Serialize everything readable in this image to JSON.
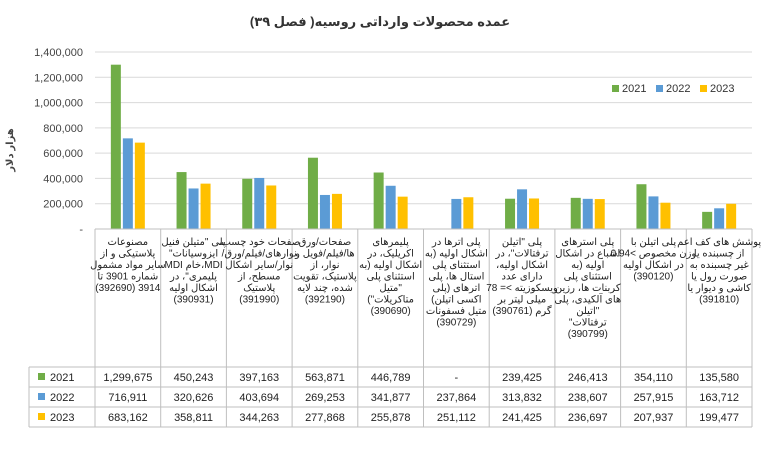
{
  "chart_data": {
    "type": "bar",
    "title": "عمده محصولات وارداتی روسیه( فصل ۳۹)",
    "ylabel": "هزار دلار",
    "ylim": [
      0,
      1400000
    ],
    "y_ticks": [
      "-",
      "200,000",
      "400,000",
      "600,000",
      "800,000",
      "1,000,000",
      "1,200,000",
      "1,400,000"
    ],
    "y_tick_values": [
      0,
      200000,
      400000,
      600000,
      800000,
      1000000,
      1200000,
      1400000
    ],
    "legend_position": "top-right",
    "grid": true,
    "categories": [
      "مصنوعات پلاستیکی و از سایر مواد مشمول شماره 3901 تا 3914 (392690)",
      "پلی \"متیلن فنیل ایزوسیانات\" MDI،خام MDI پلیمری\"، در اشکال اولیه (390931)",
      "صفحات خود چسب، نوارهای/فیلم/ورق/ نوار/سایر اشکال مسطح، از پلاستیک (391990)",
      "صفحات/ورق ها/فیلم/فویل و نوار، از پلاستیک، تقویت شده، چند لایه (392190)",
      "پلیمرهای اکریلیک، در اشکال اولیه (به استثنای پلی \"متیل متاکریلات\") (390690)",
      "پلی اترها در اشکال اولیه (به استثنای پلی استال ها، پلی اترهای (پلی اکسی اتیلن) متیل فسفونات (390729)",
      "پلی \"اتیلن ترفتالات\"، در اشکال اولیه، دارای عدد ویسکوزیته >= 78 میلی لیتر بر گرم (390761)",
      "پلی استرهای اشباع در اشکال اولیه (به استثنای پلی کربنات ها، رزین های آلکیدی، پلی \"اتیلن ترفتالات\" (390799)",
      "پلی اتیلن با وزن مخصوص >0.94 در اشکال اولیه (390120)",
      "پوشش های کف اعم از چسبنده یا غیر چسبنده به صورت رول یا کاشی و دیوار یا (391810)"
    ],
    "series": [
      {
        "name": "2021",
        "values": [
          1299675,
          450243,
          397163,
          563871,
          446789,
          null,
          239425,
          246413,
          354110,
          135580
        ],
        "labels": [
          "1,299,675",
          "450,243",
          "397,163",
          "563,871",
          "446,789",
          "-",
          "239,425",
          "246,413",
          "354,110",
          "135,580"
        ]
      },
      {
        "name": "2022",
        "values": [
          716911,
          320626,
          403694,
          269253,
          341877,
          237864,
          313832,
          238607,
          257915,
          163712
        ],
        "labels": [
          "716,911",
          "320,626",
          "403,694",
          "269,253",
          "341,877",
          "237,864",
          "313,832",
          "238,607",
          "257,915",
          "163,712"
        ]
      },
      {
        "name": "2023",
        "values": [
          683162,
          358811,
          344263,
          277868,
          255878,
          251112,
          241425,
          236697,
          207937,
          199477
        ],
        "labels": [
          "683,162",
          "358,811",
          "344,263",
          "277,868",
          "255,878",
          "251,112",
          "241,425",
          "236,697",
          "207,937",
          "199,477"
        ]
      }
    ],
    "colors": [
      "#70ad47",
      "#5b9bd5",
      "#ffc000"
    ]
  }
}
